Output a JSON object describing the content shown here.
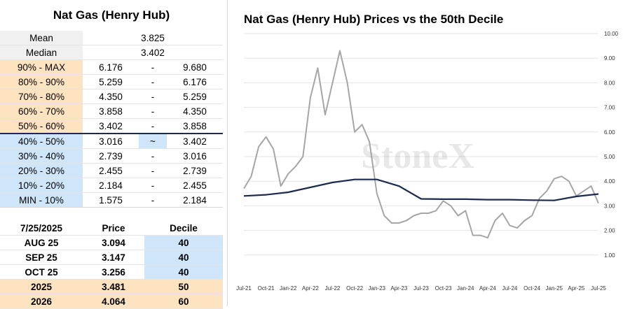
{
  "table": {
    "title": "Nat Gas (Henry Hub)",
    "mean_label": "Mean",
    "mean_value": "3.825",
    "median_label": "Median",
    "median_value": "3.402",
    "deciles": [
      {
        "label": "90% - MAX",
        "low": "6.176",
        "sep": "-",
        "high": "9.680"
      },
      {
        "label": "80% - 90%",
        "low": "5.259",
        "sep": "-",
        "high": "6.176"
      },
      {
        "label": "70% - 80%",
        "low": "4.350",
        "sep": "-",
        "high": "5.259"
      },
      {
        "label": "60% - 70%",
        "low": "3.858",
        "sep": "-",
        "high": "4.350"
      },
      {
        "label": "50% - 60%",
        "low": "3.402",
        "sep": "-",
        "high": "3.858"
      },
      {
        "label": "40% - 50%",
        "low": "3.016",
        "sep": "~",
        "high": "3.402"
      },
      {
        "label": "30% - 40%",
        "low": "2.739",
        "sep": "-",
        "high": "3.016"
      },
      {
        "label": "20% - 30%",
        "low": "2.455",
        "sep": "-",
        "high": "2.739"
      },
      {
        "label": "10% - 20%",
        "low": "2.184",
        "sep": "-",
        "high": "2.455"
      },
      {
        "label": "MIN - 10%",
        "low": "1.575",
        "sep": "-",
        "high": "2.184"
      }
    ]
  },
  "prices": {
    "header_date": "7/25/2025",
    "header_price": "Price",
    "header_decile": "Decile",
    "rows": [
      {
        "contract": "AUG 25",
        "price": "3.094",
        "decile": "40",
        "color": "#cfe6fa"
      },
      {
        "contract": "SEP 25",
        "price": "3.147",
        "decile": "40",
        "color": "#cfe6fa"
      },
      {
        "contract": "OCT 25",
        "price": "3.256",
        "decile": "40",
        "color": "#cfe6fa"
      },
      {
        "contract": "2025",
        "price": "3.481",
        "decile": "50",
        "color": "#fde3c0"
      },
      {
        "contract": "2026",
        "price": "4.064",
        "decile": "60",
        "color": "#fde3c0"
      }
    ]
  },
  "watermark": "StoneX",
  "colors": {
    "price_line": "#a6a6a6",
    "median_line": "#1b2a4e",
    "upper_band": "#fde3c0",
    "lower_band": "#cfe6fa",
    "header_gray": "#f0f0f0"
  },
  "chart_data": {
    "type": "line",
    "title": "Nat Gas (Henry Hub) Prices vs the 50th Decile",
    "y_axis_side": "right",
    "ylim": [
      0,
      10
    ],
    "yticks": [
      "10.00",
      "9.00",
      "8.00",
      "7.00",
      "6.00",
      "5.00",
      "4.00",
      "3.00",
      "2.00",
      "1.00"
    ],
    "ytick_values": [
      10,
      9,
      8,
      7,
      6,
      5,
      4,
      3,
      2,
      1
    ],
    "x_labels": [
      "Jul-21",
      "Oct-21",
      "Jan-22",
      "Apr-22",
      "Jul-22",
      "Oct-22",
      "Jan-23",
      "Apr-23",
      "Jul-23",
      "Oct-23",
      "Jan-24",
      "Apr-24",
      "Jul-24",
      "Oct-24",
      "Jan-25",
      "Apr-25",
      "Jul-25"
    ],
    "grid": "horizontal",
    "series": [
      {
        "name": "",
        "color": "#a6a6a6",
        "x": [
          "2021-07",
          "2021-08",
          "2021-09",
          "2021-10",
          "2021-11",
          "2021-12",
          "2022-01",
          "2022-02",
          "2022-03",
          "2022-04",
          "2022-05",
          "2022-06",
          "2022-07",
          "2022-08",
          "2022-09",
          "2022-10",
          "2022-11",
          "2022-12",
          "2023-01",
          "2023-02",
          "2023-03",
          "2023-04",
          "2023-05",
          "2023-06",
          "2023-07",
          "2023-08",
          "2023-09",
          "2023-10",
          "2023-11",
          "2023-12",
          "2024-01",
          "2024-02",
          "2024-03",
          "2024-04",
          "2024-05",
          "2024-06",
          "2024-07",
          "2024-08",
          "2024-09",
          "2024-10",
          "2024-11",
          "2024-12",
          "2025-01",
          "2025-02",
          "2025-03",
          "2025-04",
          "2025-05",
          "2025-06",
          "2025-07"
        ],
        "values": [
          3.7,
          4.2,
          5.4,
          5.8,
          5.3,
          3.8,
          4.3,
          4.6,
          5.0,
          7.4,
          8.6,
          6.7,
          8.0,
          9.3,
          8.0,
          6.0,
          6.3,
          5.6,
          3.5,
          2.6,
          2.3,
          2.3,
          2.4,
          2.6,
          2.7,
          2.7,
          2.8,
          3.2,
          3.0,
          2.6,
          2.8,
          1.8,
          1.8,
          1.7,
          2.4,
          2.7,
          2.2,
          2.1,
          2.4,
          2.6,
          3.3,
          3.6,
          4.1,
          4.2,
          4.0,
          3.4,
          3.6,
          3.8,
          3.1
        ]
      },
      {
        "name": "",
        "color": "#1b2a4e",
        "x": [
          "2021-07",
          "2021-10",
          "2022-01",
          "2022-04",
          "2022-07",
          "2022-10",
          "2023-01",
          "2023-04",
          "2023-07",
          "2023-10",
          "2024-01",
          "2024-04",
          "2024-07",
          "2024-10",
          "2025-01",
          "2025-04",
          "2025-07"
        ],
        "values": [
          3.4,
          3.45,
          3.55,
          3.75,
          3.95,
          4.07,
          4.07,
          3.8,
          3.28,
          3.27,
          3.27,
          3.25,
          3.25,
          3.23,
          3.22,
          3.38,
          3.48
        ]
      }
    ]
  }
}
